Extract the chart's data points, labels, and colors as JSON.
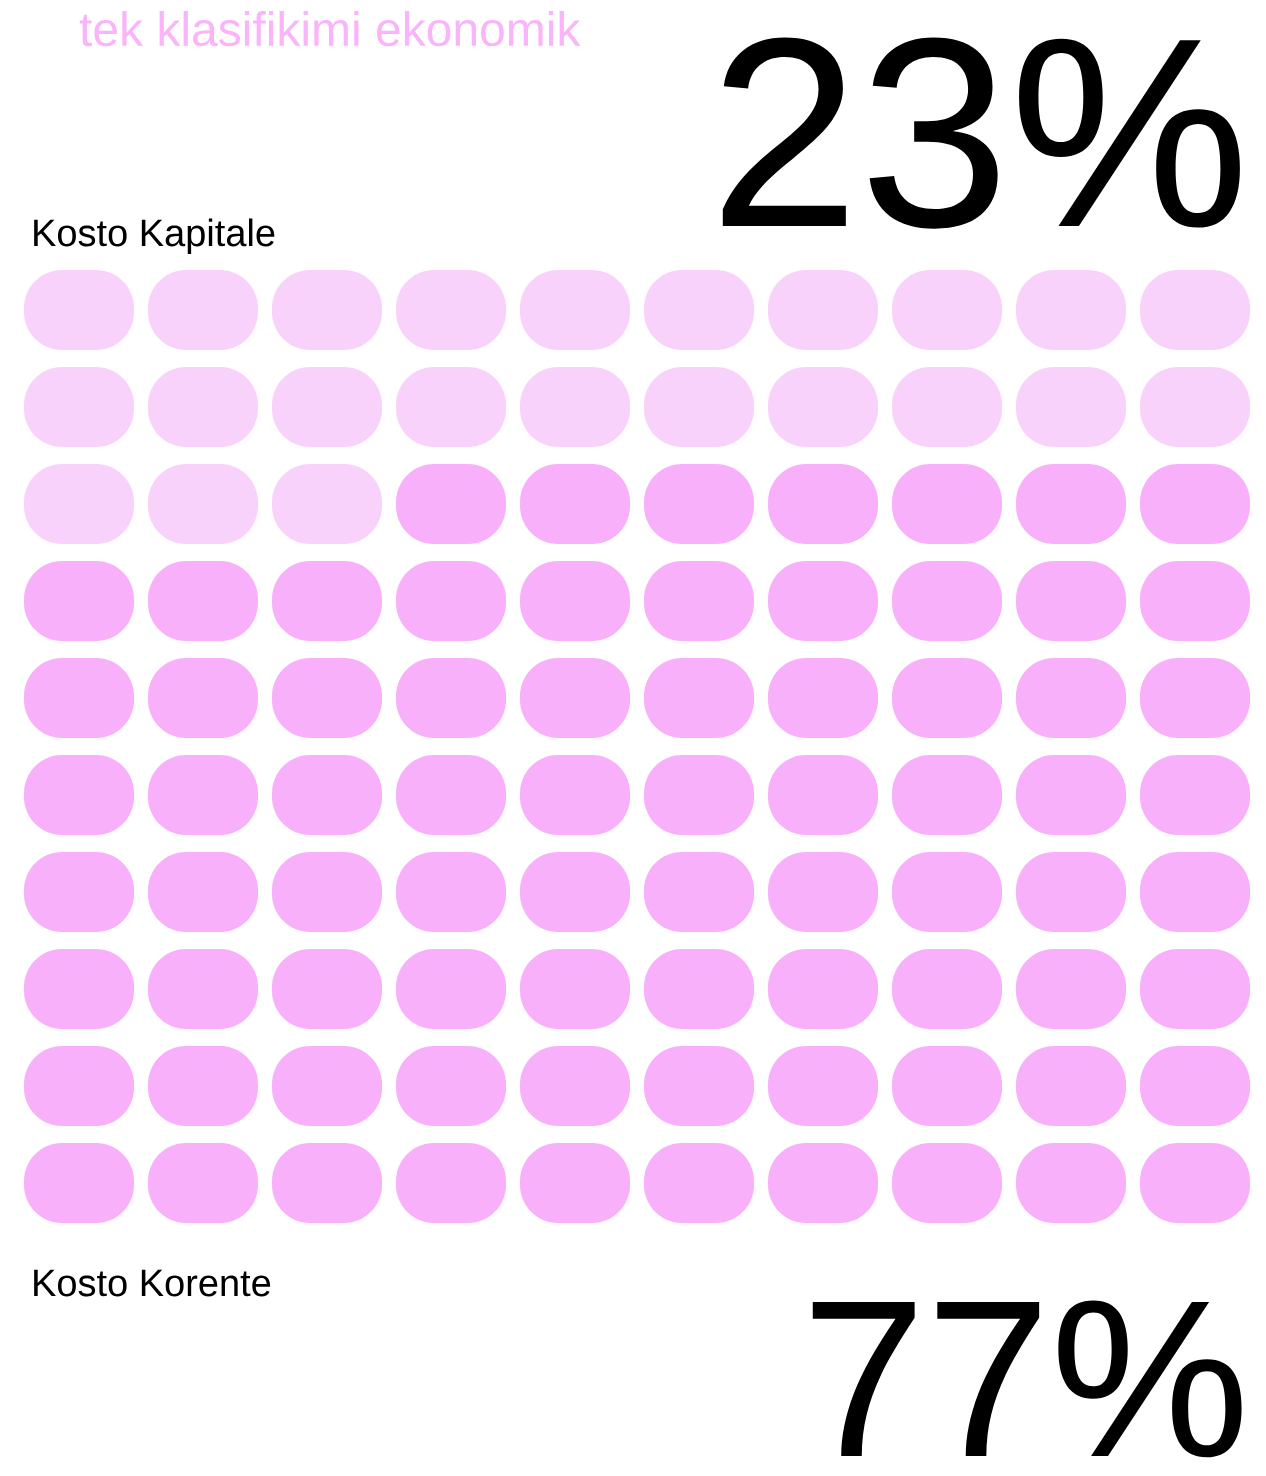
{
  "chart_data": {
    "type": "other",
    "title": "tek klasifikimi ekonomik",
    "categories": [
      "Kosto Kapitale",
      "Kosto Korente"
    ],
    "values": [
      23,
      77
    ],
    "value_labels": [
      "23%",
      "77%"
    ],
    "colors": [
      "#f9d2fb",
      "#f8b0fa"
    ]
  }
}
